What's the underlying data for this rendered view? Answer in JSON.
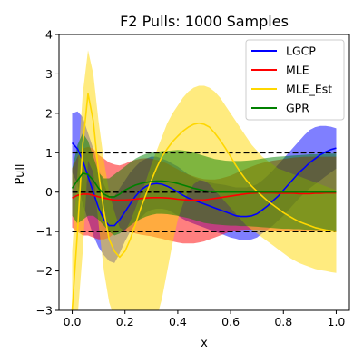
{
  "chart_data": {
    "type": "area",
    "title": "F2 Pulls: 1000 Samples",
    "xlabel": "x",
    "ylabel": "Pull",
    "xlim": [
      -0.05,
      1.05
    ],
    "ylim": [
      -3,
      4
    ],
    "xticks": [
      "0.0",
      "0.2",
      "0.4",
      "0.6",
      "0.8",
      "1.0"
    ],
    "yticks": [
      "-3",
      "-2",
      "-1",
      "0",
      "1",
      "2",
      "3",
      "4"
    ],
    "reference_lines": [
      {
        "y": 1,
        "style": "dashed",
        "color": "#000000"
      },
      {
        "y": 0,
        "style": "dashed",
        "color": "#000000"
      },
      {
        "y": -1,
        "style": "dashed",
        "color": "#000000"
      }
    ],
    "legend_position": "top-right",
    "grid": false,
    "x": [
      0.0,
      0.02,
      0.04,
      0.06,
      0.08,
      0.1,
      0.12,
      0.14,
      0.16,
      0.18,
      0.2,
      0.22,
      0.24,
      0.26,
      0.28,
      0.3,
      0.32,
      0.34,
      0.36,
      0.38,
      0.4,
      0.42,
      0.44,
      0.46,
      0.48,
      0.5,
      0.52,
      0.54,
      0.56,
      0.58,
      0.6,
      0.62,
      0.64,
      0.66,
      0.68,
      0.7,
      0.72,
      0.74,
      0.76,
      0.78,
      0.8,
      0.82,
      0.84,
      0.86,
      0.88,
      0.9,
      0.92,
      0.94,
      0.96,
      0.98,
      1.0
    ],
    "series": [
      {
        "name": "LGCP",
        "color": "#0000ff",
        "mean": [
          1.25,
          1.1,
          0.8,
          0.4,
          0.0,
          -0.4,
          -0.7,
          -0.85,
          -0.85,
          -0.7,
          -0.5,
          -0.3,
          -0.1,
          0.05,
          0.15,
          0.2,
          0.22,
          0.2,
          0.15,
          0.08,
          0.0,
          -0.08,
          -0.15,
          -0.2,
          -0.25,
          -0.3,
          -0.35,
          -0.4,
          -0.45,
          -0.5,
          -0.55,
          -0.6,
          -0.62,
          -0.62,
          -0.6,
          -0.55,
          -0.45,
          -0.35,
          -0.22,
          -0.1,
          0.05,
          0.2,
          0.35,
          0.5,
          0.62,
          0.75,
          0.85,
          0.95,
          1.02,
          1.08,
          1.12
        ],
        "upper": [
          2.0,
          2.05,
          1.9,
          1.5,
          1.1,
          0.6,
          0.2,
          -0.1,
          -0.1,
          0.1,
          0.3,
          0.5,
          0.65,
          0.78,
          0.85,
          0.9,
          0.9,
          0.85,
          0.8,
          0.72,
          0.65,
          0.55,
          0.45,
          0.38,
          0.32,
          0.28,
          0.25,
          0.22,
          0.2,
          0.18,
          0.15,
          0.12,
          0.12,
          0.12,
          0.15,
          0.2,
          0.3,
          0.42,
          0.55,
          0.7,
          0.85,
          1.0,
          1.15,
          1.3,
          1.45,
          1.58,
          1.65,
          1.68,
          1.68,
          1.66,
          1.62
        ],
        "lower": [
          0.5,
          0.2,
          -0.3,
          -0.7,
          -1.1,
          -1.4,
          -1.6,
          -1.75,
          -1.8,
          -1.55,
          -1.25,
          -1.0,
          -0.8,
          -0.65,
          -0.52,
          -0.45,
          -0.42,
          -0.42,
          -0.45,
          -0.52,
          -0.6,
          -0.68,
          -0.75,
          -0.8,
          -0.85,
          -0.9,
          -0.95,
          -1.0,
          -1.05,
          -1.1,
          -1.15,
          -1.18,
          -1.22,
          -1.22,
          -1.2,
          -1.15,
          -1.05,
          -0.95,
          -0.85,
          -0.72,
          -0.6,
          -0.45,
          -0.3,
          -0.15,
          -0.02,
          0.1,
          0.2,
          0.3,
          0.4,
          0.5,
          0.6
        ]
      },
      {
        "name": "MLE",
        "color": "#ff0000",
        "mean": [
          -0.15,
          -0.08,
          -0.05,
          -0.05,
          -0.08,
          -0.12,
          -0.15,
          -0.18,
          -0.2,
          -0.2,
          -0.2,
          -0.19,
          -0.18,
          -0.16,
          -0.15,
          -0.14,
          -0.14,
          -0.14,
          -0.15,
          -0.16,
          -0.18,
          -0.19,
          -0.2,
          -0.2,
          -0.2,
          -0.2,
          -0.18,
          -0.16,
          -0.14,
          -0.12,
          -0.1,
          -0.08,
          -0.06,
          -0.04,
          -0.03,
          -0.02,
          -0.02,
          -0.02,
          -0.02,
          -0.03,
          -0.03,
          -0.03,
          -0.03,
          -0.04,
          -0.04,
          -0.04,
          -0.03,
          -0.03,
          -0.02,
          -0.02,
          -0.02
        ],
        "upper": [
          0.6,
          0.9,
          1.1,
          1.15,
          1.1,
          0.95,
          0.85,
          0.75,
          0.7,
          0.68,
          0.72,
          0.78,
          0.82,
          0.85,
          0.86,
          0.85,
          0.82,
          0.78,
          0.72,
          0.65,
          0.58,
          0.5,
          0.45,
          0.4,
          0.36,
          0.33,
          0.32,
          0.32,
          0.34,
          0.38,
          0.42,
          0.48,
          0.54,
          0.6,
          0.65,
          0.7,
          0.74,
          0.77,
          0.8,
          0.82,
          0.84,
          0.86,
          0.88,
          0.89,
          0.9,
          0.9,
          0.9,
          0.9,
          0.9,
          0.9,
          0.9
        ],
        "lower": [
          -0.9,
          -1.0,
          -1.1,
          -1.1,
          -1.15,
          -1.2,
          -1.2,
          -1.15,
          -1.05,
          -1.0,
          -1.0,
          -1.02,
          -1.05,
          -1.08,
          -1.1,
          -1.12,
          -1.15,
          -1.18,
          -1.22,
          -1.25,
          -1.28,
          -1.3,
          -1.3,
          -1.3,
          -1.28,
          -1.25,
          -1.2,
          -1.15,
          -1.1,
          -1.05,
          -1.0,
          -0.98,
          -0.96,
          -0.95,
          -0.95,
          -0.95,
          -0.96,
          -0.97,
          -0.98,
          -0.99,
          -1.0,
          -1.0,
          -1.0,
          -1.0,
          -1.0,
          -1.0,
          -1.0,
          -1.0,
          -1.0,
          -1.0,
          -1.0
        ]
      },
      {
        "name": "MLE_Est",
        "color": "#ffd700",
        "mean": [
          -3.0,
          -1.0,
          1.2,
          2.5,
          1.8,
          0.5,
          -0.5,
          -1.2,
          -1.5,
          -1.65,
          -1.5,
          -1.2,
          -0.8,
          -0.4,
          -0.05,
          0.3,
          0.62,
          0.9,
          1.1,
          1.28,
          1.42,
          1.55,
          1.65,
          1.72,
          1.75,
          1.72,
          1.65,
          1.5,
          1.32,
          1.12,
          0.9,
          0.68,
          0.48,
          0.3,
          0.15,
          0.02,
          -0.1,
          -0.22,
          -0.32,
          -0.42,
          -0.52,
          -0.6,
          -0.68,
          -0.75,
          -0.8,
          -0.85,
          -0.9,
          -0.93,
          -0.96,
          -0.98,
          -1.0
        ],
        "upper": [
          -1.5,
          0.5,
          2.5,
          3.6,
          3.0,
          1.8,
          0.8,
          0.0,
          -0.5,
          -0.9,
          -1.0,
          -0.75,
          -0.4,
          -0.05,
          0.3,
          0.7,
          1.05,
          1.4,
          1.75,
          2.0,
          2.2,
          2.4,
          2.55,
          2.65,
          2.7,
          2.7,
          2.65,
          2.55,
          2.4,
          2.2,
          2.0,
          1.8,
          1.6,
          1.4,
          1.2,
          1.05,
          0.9,
          0.8,
          0.7,
          0.6,
          0.55,
          0.5,
          0.45,
          0.4,
          0.35,
          0.3,
          0.25,
          0.2,
          0.15,
          0.1,
          0.05
        ],
        "lower": [
          -3.2,
          -3.2,
          -1.5,
          0.8,
          0.5,
          -0.8,
          -2.0,
          -2.8,
          -3.2,
          -3.2,
          -3.2,
          -3.2,
          -3.2,
          -3.2,
          -3.2,
          -3.2,
          -3.2,
          -2.7,
          -2.0,
          -1.3,
          -0.7,
          -0.3,
          0.0,
          0.2,
          0.3,
          0.3,
          0.2,
          0.05,
          -0.1,
          -0.25,
          -0.4,
          -0.55,
          -0.7,
          -0.85,
          -0.95,
          -1.05,
          -1.15,
          -1.25,
          -1.35,
          -1.45,
          -1.55,
          -1.65,
          -1.73,
          -1.8,
          -1.85,
          -1.9,
          -1.95,
          -1.98,
          -2.0,
          -2.03,
          -2.05
        ]
      },
      {
        "name": "GPR",
        "color": "#008000",
        "mean": [
          0.1,
          0.3,
          0.48,
          0.45,
          0.3,
          0.1,
          -0.05,
          -0.12,
          -0.12,
          -0.05,
          0.05,
          0.12,
          0.18,
          0.22,
          0.25,
          0.27,
          0.28,
          0.28,
          0.27,
          0.25,
          0.22,
          0.18,
          0.14,
          0.1,
          0.07,
          0.04,
          0.02,
          0.01,
          0.0,
          0.0,
          0.0,
          0.0,
          0.0,
          0.0,
          0.0,
          0.0,
          0.0,
          0.0,
          0.0,
          0.0,
          0.0,
          0.0,
          0.0,
          0.0,
          0.0,
          0.0,
          0.0,
          0.0,
          0.0,
          0.0,
          0.0
        ],
        "upper": [
          0.6,
          1.2,
          1.5,
          1.3,
          0.9,
          0.5,
          0.35,
          0.35,
          0.45,
          0.55,
          0.65,
          0.75,
          0.85,
          0.92,
          0.97,
          1.0,
          1.02,
          1.04,
          1.05,
          1.06,
          1.07,
          1.06,
          1.04,
          1.0,
          0.96,
          0.92,
          0.88,
          0.84,
          0.82,
          0.8,
          0.79,
          0.79,
          0.79,
          0.8,
          0.81,
          0.83,
          0.85,
          0.87,
          0.89,
          0.9,
          0.91,
          0.92,
          0.93,
          0.94,
          0.95,
          0.96,
          0.96,
          0.97,
          0.97,
          0.98,
          0.98
        ],
        "lower": [
          -0.6,
          -0.8,
          -0.7,
          -0.6,
          -0.6,
          -0.7,
          -0.85,
          -1.0,
          -1.1,
          -1.05,
          -0.95,
          -0.85,
          -0.75,
          -0.68,
          -0.62,
          -0.58,
          -0.55,
          -0.55,
          -0.56,
          -0.58,
          -0.6,
          -0.63,
          -0.66,
          -0.7,
          -0.74,
          -0.78,
          -0.8,
          -0.82,
          -0.83,
          -0.84,
          -0.85,
          -0.85,
          -0.86,
          -0.86,
          -0.87,
          -0.88,
          -0.89,
          -0.9,
          -0.91,
          -0.92,
          -0.93,
          -0.93,
          -0.94,
          -0.94,
          -0.95,
          -0.95,
          -0.96,
          -0.96,
          -0.97,
          -0.97,
          -0.98
        ]
      }
    ]
  }
}
